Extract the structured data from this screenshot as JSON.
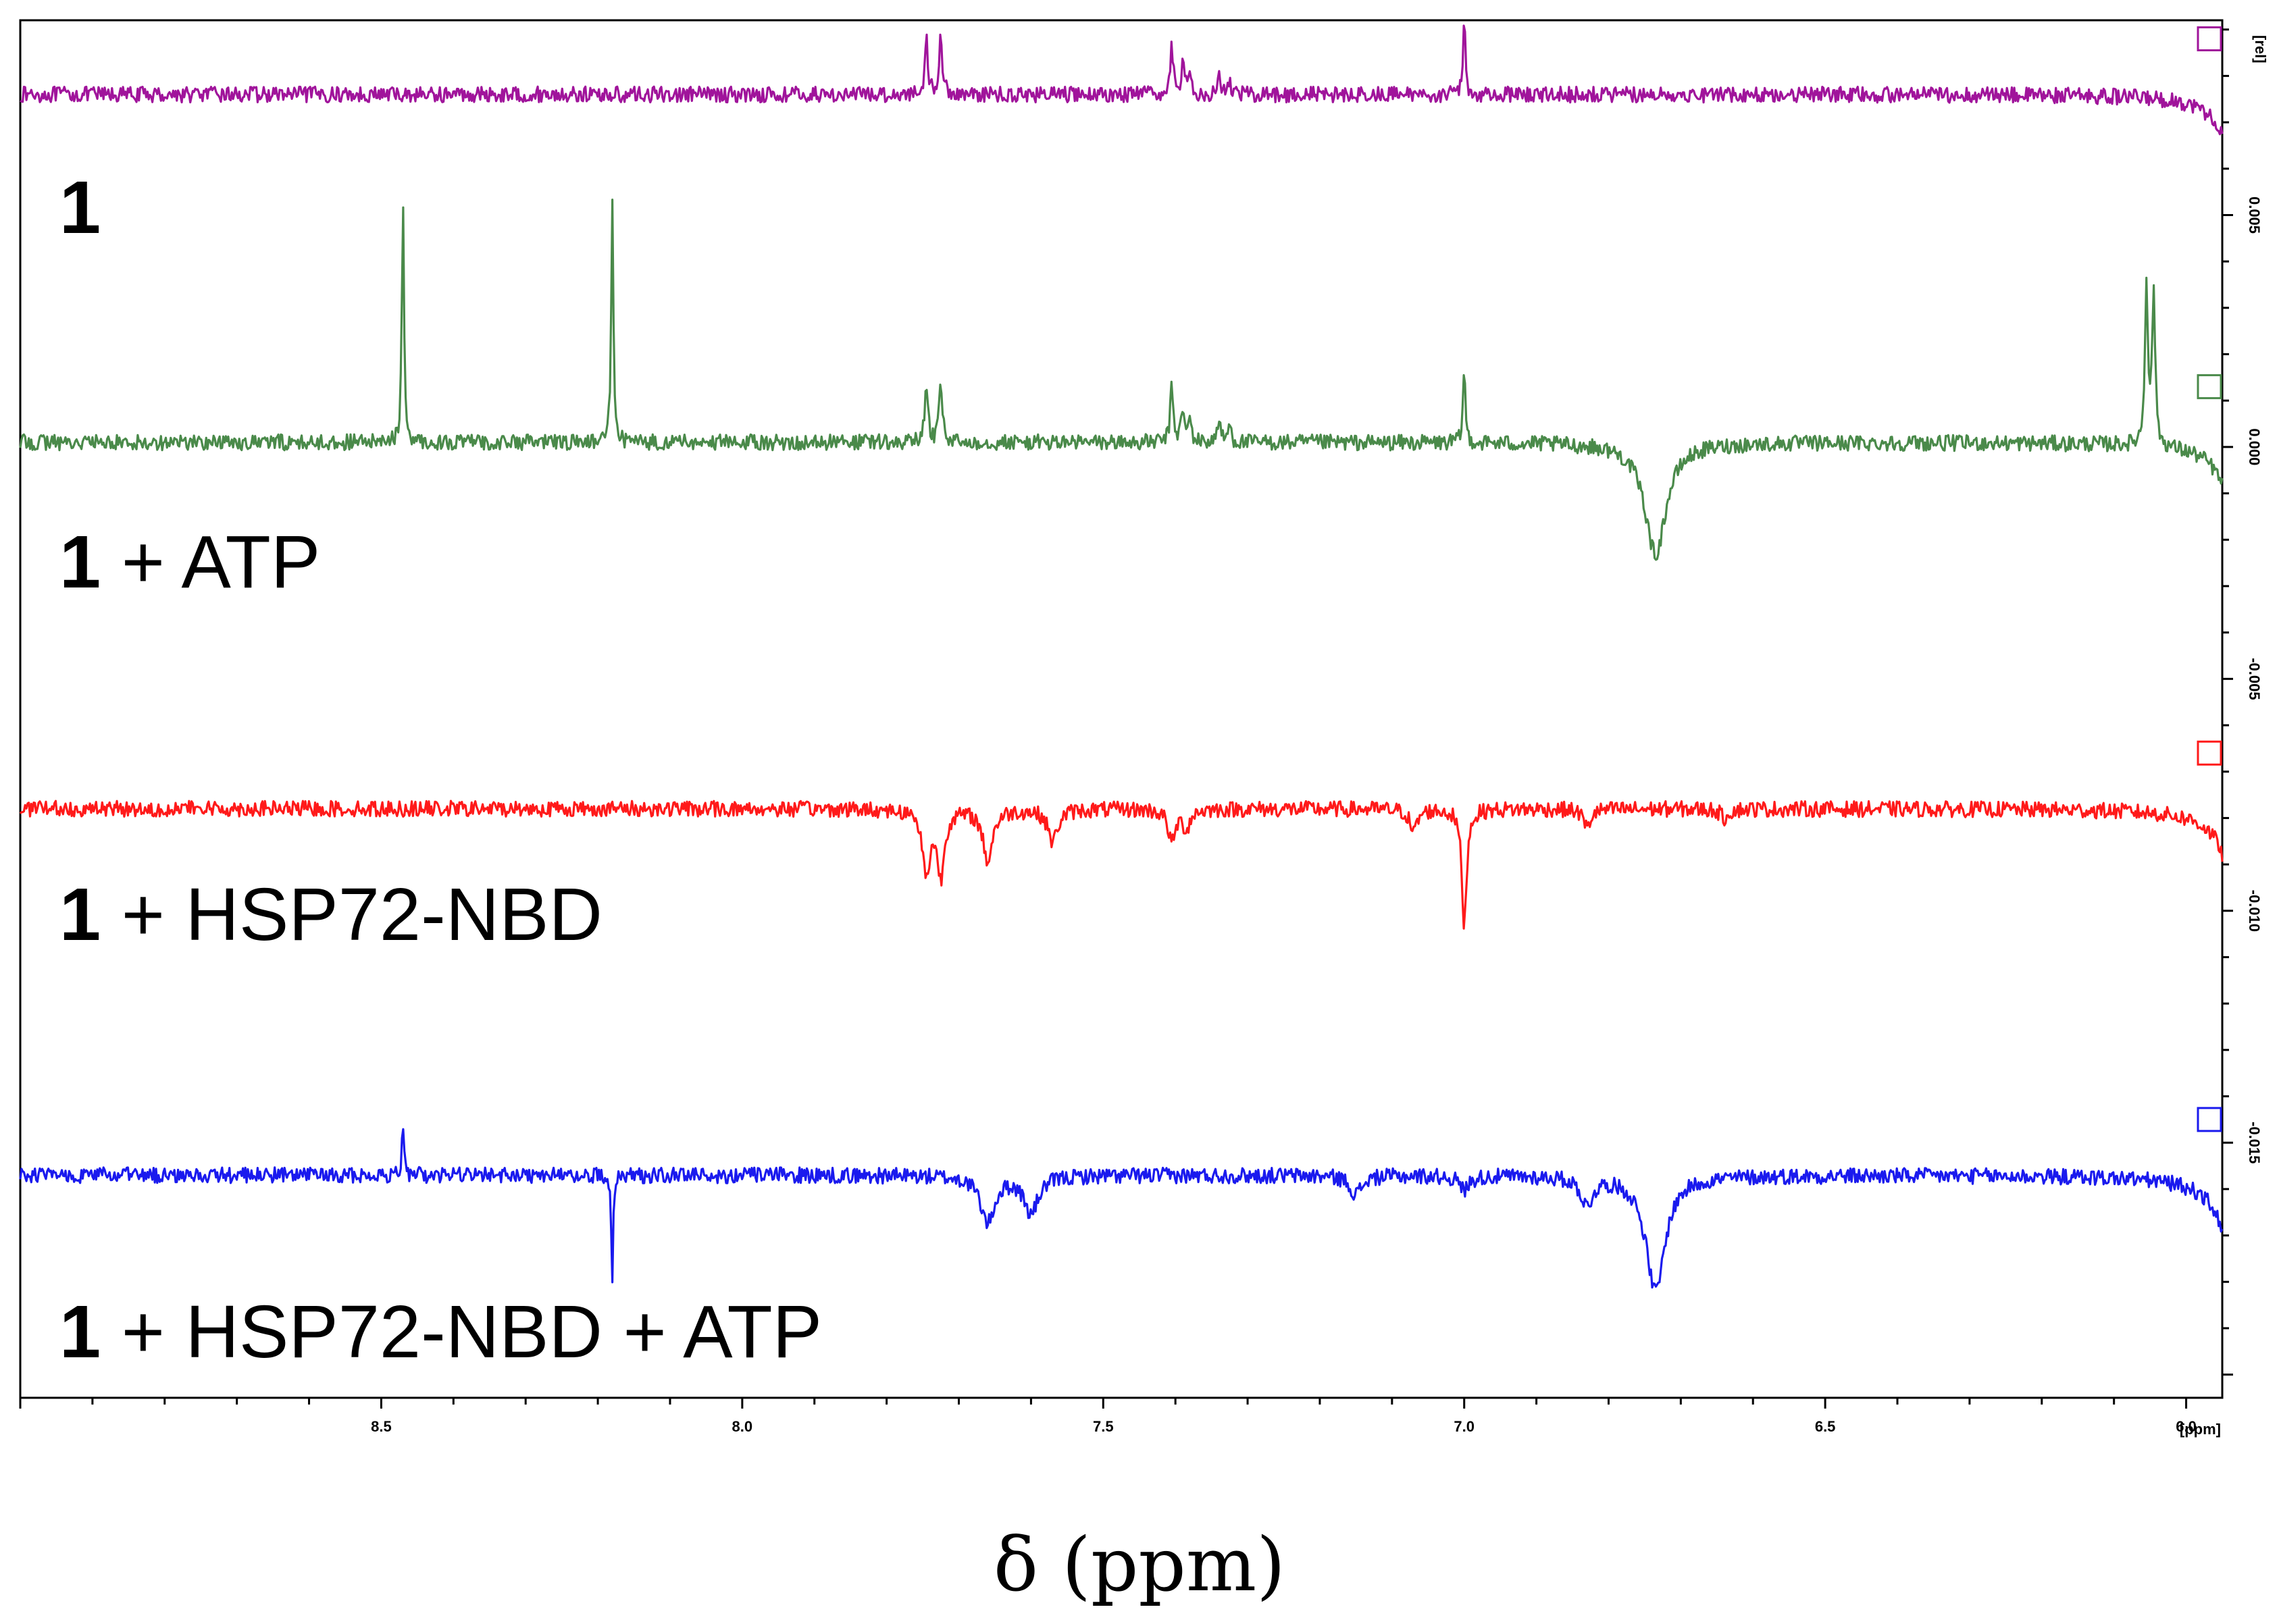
{
  "chart_data": {
    "type": "line",
    "title": "",
    "xlabel": "δ (ppm)",
    "ylabel": "",
    "x_unit": "[ppm]",
    "y_unit": "[rel]",
    "xlim": [
      9.0,
      5.95
    ],
    "ylim": [
      -0.0205,
      0.0092
    ],
    "x_ticks": [
      8.5,
      8.0,
      7.5,
      7.0,
      6.5,
      6.0
    ],
    "x_tick_labels": [
      "8.5",
      "8.0",
      "7.5",
      "7.0",
      "6.5",
      "6.0"
    ],
    "y_ticks": [
      0.005,
      0.0,
      -0.005,
      -0.01,
      -0.015
    ],
    "y_tick_labels": [
      "0.005",
      "0.000",
      "-0.005",
      "-0.010",
      "-0.015"
    ],
    "grid": false,
    "series": [
      {
        "name": "1",
        "color": "#a0149b",
        "baseline": 0.0076,
        "peaks": [
          [
            7.745,
            0.0012,
            0.0025
          ],
          [
            7.725,
            0.0013,
            0.0025
          ],
          [
            7.405,
            0.001,
            0.0025
          ],
          [
            7.39,
            0.0006,
            0.0025
          ],
          [
            7.38,
            0.0005,
            0.0025
          ],
          [
            7.34,
            0.0004,
            0.0025
          ],
          [
            7.325,
            0.0003,
            0.0025
          ],
          [
            7.0,
            0.0016,
            0.002
          ],
          [
            5.91,
            -0.0108,
            0.012
          ],
          [
            5.86,
            -0.0008,
            0.01
          ]
        ]
      },
      {
        "name": "1 + ATP",
        "color": "#4a8a4a",
        "baseline": 0.0001,
        "peaks": [
          [
            8.47,
            0.0051,
            0.0018
          ],
          [
            8.18,
            0.0051,
            0.0018
          ],
          [
            7.745,
            0.0013,
            0.0025
          ],
          [
            7.725,
            0.0013,
            0.0025
          ],
          [
            7.405,
            0.0012,
            0.0025
          ],
          [
            7.39,
            0.0007,
            0.0025
          ],
          [
            7.38,
            0.0005,
            0.0025
          ],
          [
            7.34,
            0.0005,
            0.0025
          ],
          [
            7.325,
            0.0004,
            0.0025
          ],
          [
            7.0,
            0.0016,
            0.002
          ],
          [
            6.735,
            -0.0024,
            0.018
          ],
          [
            6.055,
            0.0035,
            0.0025
          ],
          [
            6.045,
            0.0033,
            0.0025
          ],
          [
            5.91,
            -0.0112,
            0.012
          ],
          [
            5.86,
            -0.0008,
            0.01
          ]
        ]
      },
      {
        "name": "1 + HSP72-NBD",
        "color": "#ff1a1a",
        "baseline": -0.0078,
        "peaks": [
          [
            7.745,
            -0.0014,
            0.006
          ],
          [
            7.725,
            -0.0014,
            0.006
          ],
          [
            7.66,
            -0.0011,
            0.008
          ],
          [
            7.57,
            -0.0007,
            0.008
          ],
          [
            7.405,
            -0.0007,
            0.006
          ],
          [
            7.385,
            -0.0004,
            0.006
          ],
          [
            7.07,
            -0.0005,
            0.006
          ],
          [
            7.0,
            -0.0025,
            0.004
          ],
          [
            6.83,
            -0.0004,
            0.006
          ],
          [
            6.64,
            -0.0002,
            0.006
          ],
          [
            5.91,
            -0.0118,
            0.012
          ],
          [
            5.86,
            -0.0009,
            0.012
          ]
        ]
      },
      {
        "name": "1 + HSP72-NBD + ATP",
        "color": "#1a1aee",
        "baseline": -0.0157,
        "peaks": [
          [
            8.47,
            0.0012,
            0.0015
          ],
          [
            8.18,
            -0.0022,
            0.0015
          ],
          [
            7.66,
            -0.001,
            0.012
          ],
          [
            7.6,
            -0.0008,
            0.012
          ],
          [
            7.15,
            -0.0004,
            0.01
          ],
          [
            7.0,
            -0.0003,
            0.008
          ],
          [
            6.83,
            -0.0006,
            0.01
          ],
          [
            6.735,
            -0.0025,
            0.016
          ],
          [
            5.91,
            -0.0145,
            0.012
          ],
          [
            5.86,
            -0.0015,
            0.01
          ]
        ]
      }
    ]
  },
  "labels": [
    {
      "bold": "1",
      "rest": ""
    },
    {
      "bold": "1",
      "rest": " + ATP"
    },
    {
      "bold": "1",
      "rest": " + HSP72-NBD"
    },
    {
      "bold": "1",
      "rest": " + HSP72-NBD + ATP"
    }
  ]
}
